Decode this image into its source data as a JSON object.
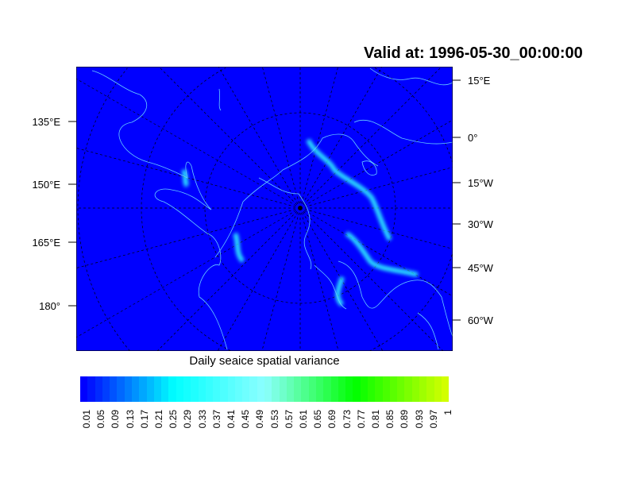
{
  "title": "Valid at: 1996-05-30_00:00:00",
  "colorbar_title": "Daily seaice spatial variance",
  "left_lon_labels": [
    "135°E",
    "150°E",
    "165°E",
    "180°"
  ],
  "right_lon_labels": [
    "15°E",
    "0°",
    "15°W",
    "30°W",
    "45°W",
    "60°W"
  ],
  "colorbar_labels": [
    "0.01",
    "0.05",
    "0.09",
    "0.13",
    "0.17",
    "0.21",
    "0.25",
    "0.29",
    "0.33",
    "0.37",
    "0.41",
    "0.45",
    "0.49",
    "0.53",
    "0.57",
    "0.61",
    "0.65",
    "0.69",
    "0.73",
    "0.77",
    "0.81",
    "0.85",
    "0.89",
    "0.93",
    "0.97",
    "1"
  ],
  "colors": {
    "ocean": "#0000ff",
    "coast": "#66ccff",
    "ice_edge": "#33ffff",
    "grid": "#000000"
  },
  "projection": "north polar stereographic"
}
